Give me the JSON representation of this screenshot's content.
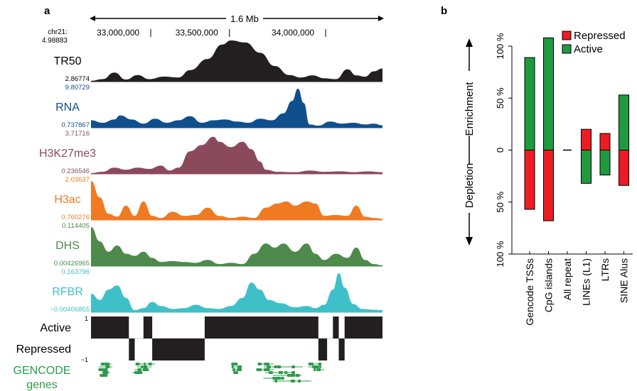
{
  "panel_a": {
    "label": "a",
    "span_label": "1.6 Mb",
    "chrom": "chr21:",
    "coords": [
      "33,000,000",
      "33,500,000",
      "34,000,000"
    ],
    "tracks": [
      {
        "name": "TR50",
        "max": "4.98883",
        "min": "2.86774",
        "color": "#231f20",
        "shape": [
          [
            0,
            0.02
          ],
          [
            0.04,
            0.06
          ],
          [
            0.08,
            0.22
          ],
          [
            0.12,
            0.05
          ],
          [
            0.16,
            0.16
          ],
          [
            0.2,
            0.06
          ],
          [
            0.25,
            0.12
          ],
          [
            0.3,
            0.1
          ],
          [
            0.34,
            0.28
          ],
          [
            0.4,
            0.55
          ],
          [
            0.45,
            0.9
          ],
          [
            0.48,
            1.0
          ],
          [
            0.53,
            0.95
          ],
          [
            0.58,
            0.7
          ],
          [
            0.63,
            0.38
          ],
          [
            0.68,
            0.16
          ],
          [
            0.72,
            0.1
          ],
          [
            0.76,
            0.15
          ],
          [
            0.8,
            0.08
          ],
          [
            0.84,
            0.06
          ],
          [
            0.88,
            0.3
          ],
          [
            0.91,
            0.15
          ],
          [
            0.94,
            0.12
          ],
          [
            0.97,
            0.25
          ],
          [
            1.0,
            0.32
          ]
        ]
      },
      {
        "name": "RNA",
        "max": "9.80729",
        "min": "0.737867",
        "color": "#0f4f8e",
        "shape": [
          [
            0,
            0.18
          ],
          [
            0.04,
            0.12
          ],
          [
            0.08,
            0.2
          ],
          [
            0.1,
            0.3
          ],
          [
            0.14,
            0.2
          ],
          [
            0.18,
            0.1
          ],
          [
            0.22,
            0.22
          ],
          [
            0.26,
            0.12
          ],
          [
            0.3,
            0.18
          ],
          [
            0.34,
            0.28
          ],
          [
            0.38,
            0.12
          ],
          [
            0.42,
            0.18
          ],
          [
            0.46,
            0.2
          ],
          [
            0.5,
            0.15
          ],
          [
            0.54,
            0.12
          ],
          [
            0.58,
            0.22
          ],
          [
            0.62,
            0.18
          ],
          [
            0.66,
            0.35
          ],
          [
            0.69,
            0.65
          ],
          [
            0.71,
            0.95
          ],
          [
            0.73,
            0.6
          ],
          [
            0.75,
            0.08
          ],
          [
            0.78,
            0.05
          ],
          [
            0.82,
            0.15
          ],
          [
            0.86,
            0.1
          ],
          [
            0.9,
            0.12
          ],
          [
            0.94,
            0.08
          ],
          [
            0.97,
            0.1
          ],
          [
            1.0,
            0.06
          ]
        ]
      },
      {
        "name": "H3K27me3",
        "max": "3.71716",
        "min": "0.236546",
        "color": "#8b4a5c",
        "shape": [
          [
            0,
            0.02
          ],
          [
            0.04,
            0.05
          ],
          [
            0.08,
            0.15
          ],
          [
            0.12,
            0.1
          ],
          [
            0.16,
            0.15
          ],
          [
            0.2,
            0.12
          ],
          [
            0.24,
            0.2
          ],
          [
            0.27,
            0.08
          ],
          [
            0.3,
            0.15
          ],
          [
            0.34,
            0.55
          ],
          [
            0.38,
            0.7
          ],
          [
            0.42,
            0.9
          ],
          [
            0.44,
            0.78
          ],
          [
            0.48,
            0.65
          ],
          [
            0.52,
            0.78
          ],
          [
            0.55,
            0.6
          ],
          [
            0.58,
            0.3
          ],
          [
            0.6,
            0.1
          ],
          [
            0.64,
            0.05
          ],
          [
            0.7,
            0.04
          ],
          [
            0.75,
            0.08
          ],
          [
            0.8,
            0.05
          ],
          [
            0.86,
            0.06
          ],
          [
            0.9,
            0.04
          ],
          [
            0.95,
            0.06
          ],
          [
            1.0,
            0.04
          ]
        ]
      },
      {
        "name": "H3ac",
        "max": "2.03637",
        "min": "0.760276",
        "color": "#f07a22",
        "shape": [
          [
            0,
            0.95
          ],
          [
            0.03,
            0.55
          ],
          [
            0.06,
            0.15
          ],
          [
            0.09,
            0.08
          ],
          [
            0.12,
            0.35
          ],
          [
            0.15,
            0.1
          ],
          [
            0.18,
            0.45
          ],
          [
            0.21,
            0.1
          ],
          [
            0.24,
            0.05
          ],
          [
            0.28,
            0.2
          ],
          [
            0.32,
            0.1
          ],
          [
            0.36,
            0.12
          ],
          [
            0.4,
            0.3
          ],
          [
            0.44,
            0.1
          ],
          [
            0.48,
            0.05
          ],
          [
            0.52,
            0.08
          ],
          [
            0.56,
            0.05
          ],
          [
            0.6,
            0.3
          ],
          [
            0.64,
            0.4
          ],
          [
            0.67,
            0.45
          ],
          [
            0.7,
            0.35
          ],
          [
            0.74,
            0.45
          ],
          [
            0.77,
            0.4
          ],
          [
            0.8,
            0.1
          ],
          [
            0.84,
            0.12
          ],
          [
            0.88,
            0.1
          ],
          [
            0.91,
            0.35
          ],
          [
            0.94,
            0.08
          ],
          [
            0.97,
            0.05
          ],
          [
            1.0,
            0.03
          ]
        ]
      },
      {
        "name": "DHS",
        "max": "0.114405",
        "min": "0.00426965",
        "color": "#4e8a4b",
        "shape": [
          [
            0,
            0.95
          ],
          [
            0.03,
            0.6
          ],
          [
            0.06,
            0.35
          ],
          [
            0.09,
            0.5
          ],
          [
            0.12,
            0.3
          ],
          [
            0.15,
            0.25
          ],
          [
            0.18,
            0.35
          ],
          [
            0.21,
            0.2
          ],
          [
            0.24,
            0.1
          ],
          [
            0.28,
            0.12
          ],
          [
            0.32,
            0.1
          ],
          [
            0.36,
            0.08
          ],
          [
            0.4,
            0.15
          ],
          [
            0.44,
            0.05
          ],
          [
            0.48,
            0.08
          ],
          [
            0.52,
            0.05
          ],
          [
            0.56,
            0.3
          ],
          [
            0.6,
            0.55
          ],
          [
            0.63,
            0.45
          ],
          [
            0.66,
            0.55
          ],
          [
            0.7,
            0.35
          ],
          [
            0.74,
            0.55
          ],
          [
            0.77,
            0.3
          ],
          [
            0.8,
            0.15
          ],
          [
            0.84,
            0.3
          ],
          [
            0.88,
            0.2
          ],
          [
            0.91,
            0.45
          ],
          [
            0.94,
            0.15
          ],
          [
            0.97,
            0.05
          ],
          [
            1.0,
            0.02
          ]
        ]
      },
      {
        "name": "RFBR",
        "max": "0.163796",
        "min": "−0.00406855",
        "color": "#3fc0c8",
        "shape": [
          [
            0,
            0.45
          ],
          [
            0.03,
            0.3
          ],
          [
            0.06,
            0.55
          ],
          [
            0.09,
            0.65
          ],
          [
            0.12,
            0.35
          ],
          [
            0.15,
            0.05
          ],
          [
            0.18,
            0.1
          ],
          [
            0.21,
            0.25
          ],
          [
            0.24,
            0.15
          ],
          [
            0.28,
            0.08
          ],
          [
            0.32,
            0.1
          ],
          [
            0.36,
            0.18
          ],
          [
            0.4,
            0.1
          ],
          [
            0.44,
            0.08
          ],
          [
            0.48,
            0.15
          ],
          [
            0.52,
            0.35
          ],
          [
            0.55,
            0.72
          ],
          [
            0.58,
            0.55
          ],
          [
            0.61,
            0.3
          ],
          [
            0.65,
            0.22
          ],
          [
            0.7,
            0.12
          ],
          [
            0.74,
            0.15
          ],
          [
            0.77,
            0.1
          ],
          [
            0.8,
            0.18
          ],
          [
            0.83,
            0.55
          ],
          [
            0.85,
            0.95
          ],
          [
            0.87,
            0.6
          ],
          [
            0.9,
            0.2
          ],
          [
            0.93,
            0.08
          ],
          [
            0.97,
            0.06
          ],
          [
            1.0,
            0.05
          ]
        ]
      }
    ],
    "state_labels": {
      "active": "Active",
      "repressed": "Repressed",
      "top": "1",
      "bottom": "−1"
    },
    "active_segments": [
      [
        0.0,
        0.13
      ],
      [
        0.18,
        0.21
      ],
      [
        0.39,
        0.78
      ],
      [
        0.83,
        0.85
      ],
      [
        0.87,
        1.0
      ]
    ],
    "repressed_segments": [
      [
        0.13,
        0.15
      ],
      [
        0.21,
        0.39
      ],
      [
        0.78,
        0.81
      ],
      [
        0.85,
        0.87
      ]
    ],
    "gencode": {
      "label1": "GENCODE",
      "label2": "genes",
      "color": "#2e9a4a"
    }
  },
  "chart_data": {
    "label": "b",
    "type": "bar",
    "categories": [
      "Gencode TSSs",
      "CpG islands",
      "All repeat",
      "LINEs (L1)",
      "LTRs",
      "SINE Alus"
    ],
    "series": [
      {
        "name": "Repressed",
        "color": "#ed1c24",
        "values": [
          -57,
          -68,
          0,
          20,
          16,
          -34
        ]
      },
      {
        "name": "Active",
        "color": "#1f9a3f",
        "values": [
          89,
          108,
          0,
          -32,
          -24,
          53
        ]
      }
    ],
    "ylim": [
      -100,
      100
    ],
    "yticks": [
      "100 %",
      "50 %",
      "0",
      "50 %",
      "100 %"
    ],
    "ylabel_top": "Enrichment",
    "ylabel_bottom": "Depletion",
    "legend_position": "top-right"
  }
}
